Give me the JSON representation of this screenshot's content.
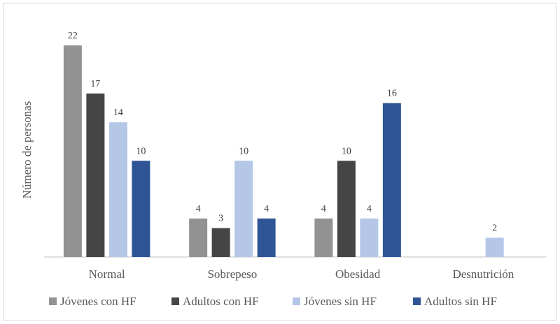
{
  "chart_data": {
    "type": "bar",
    "title": "",
    "xlabel": "",
    "ylabel": "Número de personas",
    "categories": [
      "Normal",
      "Sobrepeso",
      "Obesidad",
      "Desnutrición"
    ],
    "series": [
      {
        "name": "Jóvenes con HF",
        "color": "#929292",
        "values": [
          22,
          4,
          4,
          null
        ]
      },
      {
        "name": "Adultos con HF",
        "color": "#454545",
        "values": [
          17,
          3,
          10,
          null
        ]
      },
      {
        "name": "Jóvenes sin HF",
        "color": "#b4c7e7",
        "values": [
          14,
          10,
          4,
          2
        ]
      },
      {
        "name": "Adultos sin HF",
        "color": "#2f5597",
        "values": [
          10,
          4,
          16,
          null
        ]
      }
    ],
    "ylim": [
      0,
      22
    ],
    "grid": false,
    "data_labels": true,
    "legend_position": "bottom"
  }
}
